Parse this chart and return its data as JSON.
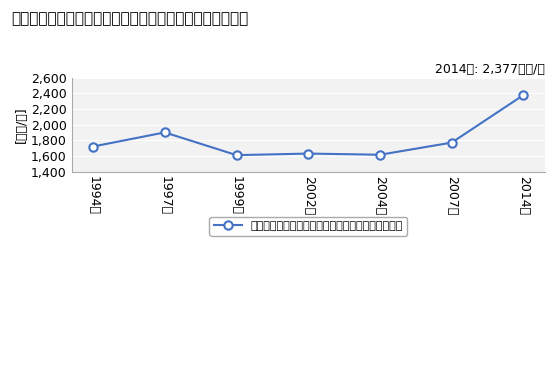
{
  "title": "その他の小売業の従業者一人当たり年間商品販売額の推移",
  "ylabel": "[万円/人]",
  "annotation": "2014年: 2,377万円/人",
  "years": [
    "1994年",
    "1997年",
    "1999年",
    "2002年",
    "2004年",
    "2007年",
    "2014年"
  ],
  "values": [
    1720,
    1900,
    1610,
    1630,
    1615,
    1770,
    2377
  ],
  "ylim": [
    1400,
    2600
  ],
  "yticks": [
    1400,
    1600,
    1800,
    2000,
    2200,
    2400,
    2600
  ],
  "line_color": "#4472C4",
  "marker": "o",
  "marker_facecolor": "#FFFFFF",
  "marker_edgecolor": "#4472C4",
  "legend_label": "その他の小売業の従業者一人当たり年間商品販売額",
  "background_color": "#FFFFFF",
  "plot_bg_color": "#F2F2F2",
  "title_fontsize": 11,
  "axis_fontsize": 9,
  "annotation_fontsize": 9,
  "legend_fontsize": 8
}
